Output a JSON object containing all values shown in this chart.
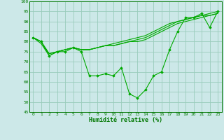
{
  "title": "",
  "xlabel": "Humidité relative (%)",
  "ylabel": "",
  "bg_color": "#cce8e8",
  "grid_color": "#99ccbb",
  "line_color": "#00aa00",
  "marker_color": "#00aa00",
  "xlim": [
    -0.5,
    23.5
  ],
  "ylim": [
    45,
    100
  ],
  "yticks": [
    45,
    50,
    55,
    60,
    65,
    70,
    75,
    80,
    85,
    90,
    95,
    100
  ],
  "xticks": [
    0,
    1,
    2,
    3,
    4,
    5,
    6,
    7,
    8,
    9,
    10,
    11,
    12,
    13,
    14,
    15,
    16,
    17,
    18,
    19,
    20,
    21,
    22,
    23
  ],
  "series": [
    [
      82,
      80,
      73,
      75,
      75,
      77,
      75,
      63,
      63,
      64,
      63,
      67,
      54,
      52,
      56,
      63,
      65,
      76,
      85,
      92,
      92,
      94,
      87,
      95
    ],
    [
      82,
      79,
      73,
      75,
      76,
      77,
      76,
      76,
      77,
      78,
      79,
      80,
      81,
      82,
      83,
      85,
      87,
      89,
      90,
      91,
      92,
      93,
      94,
      95
    ],
    [
      82,
      80,
      74,
      75,
      76,
      77,
      76,
      76,
      77,
      78,
      78,
      79,
      80,
      81,
      82,
      84,
      86,
      88,
      90,
      91,
      92,
      93,
      93,
      94
    ],
    [
      82,
      80,
      74,
      75,
      76,
      77,
      76,
      76,
      77,
      78,
      78,
      79,
      80,
      80,
      81,
      83,
      85,
      87,
      89,
      90,
      91,
      92,
      93,
      94
    ]
  ]
}
